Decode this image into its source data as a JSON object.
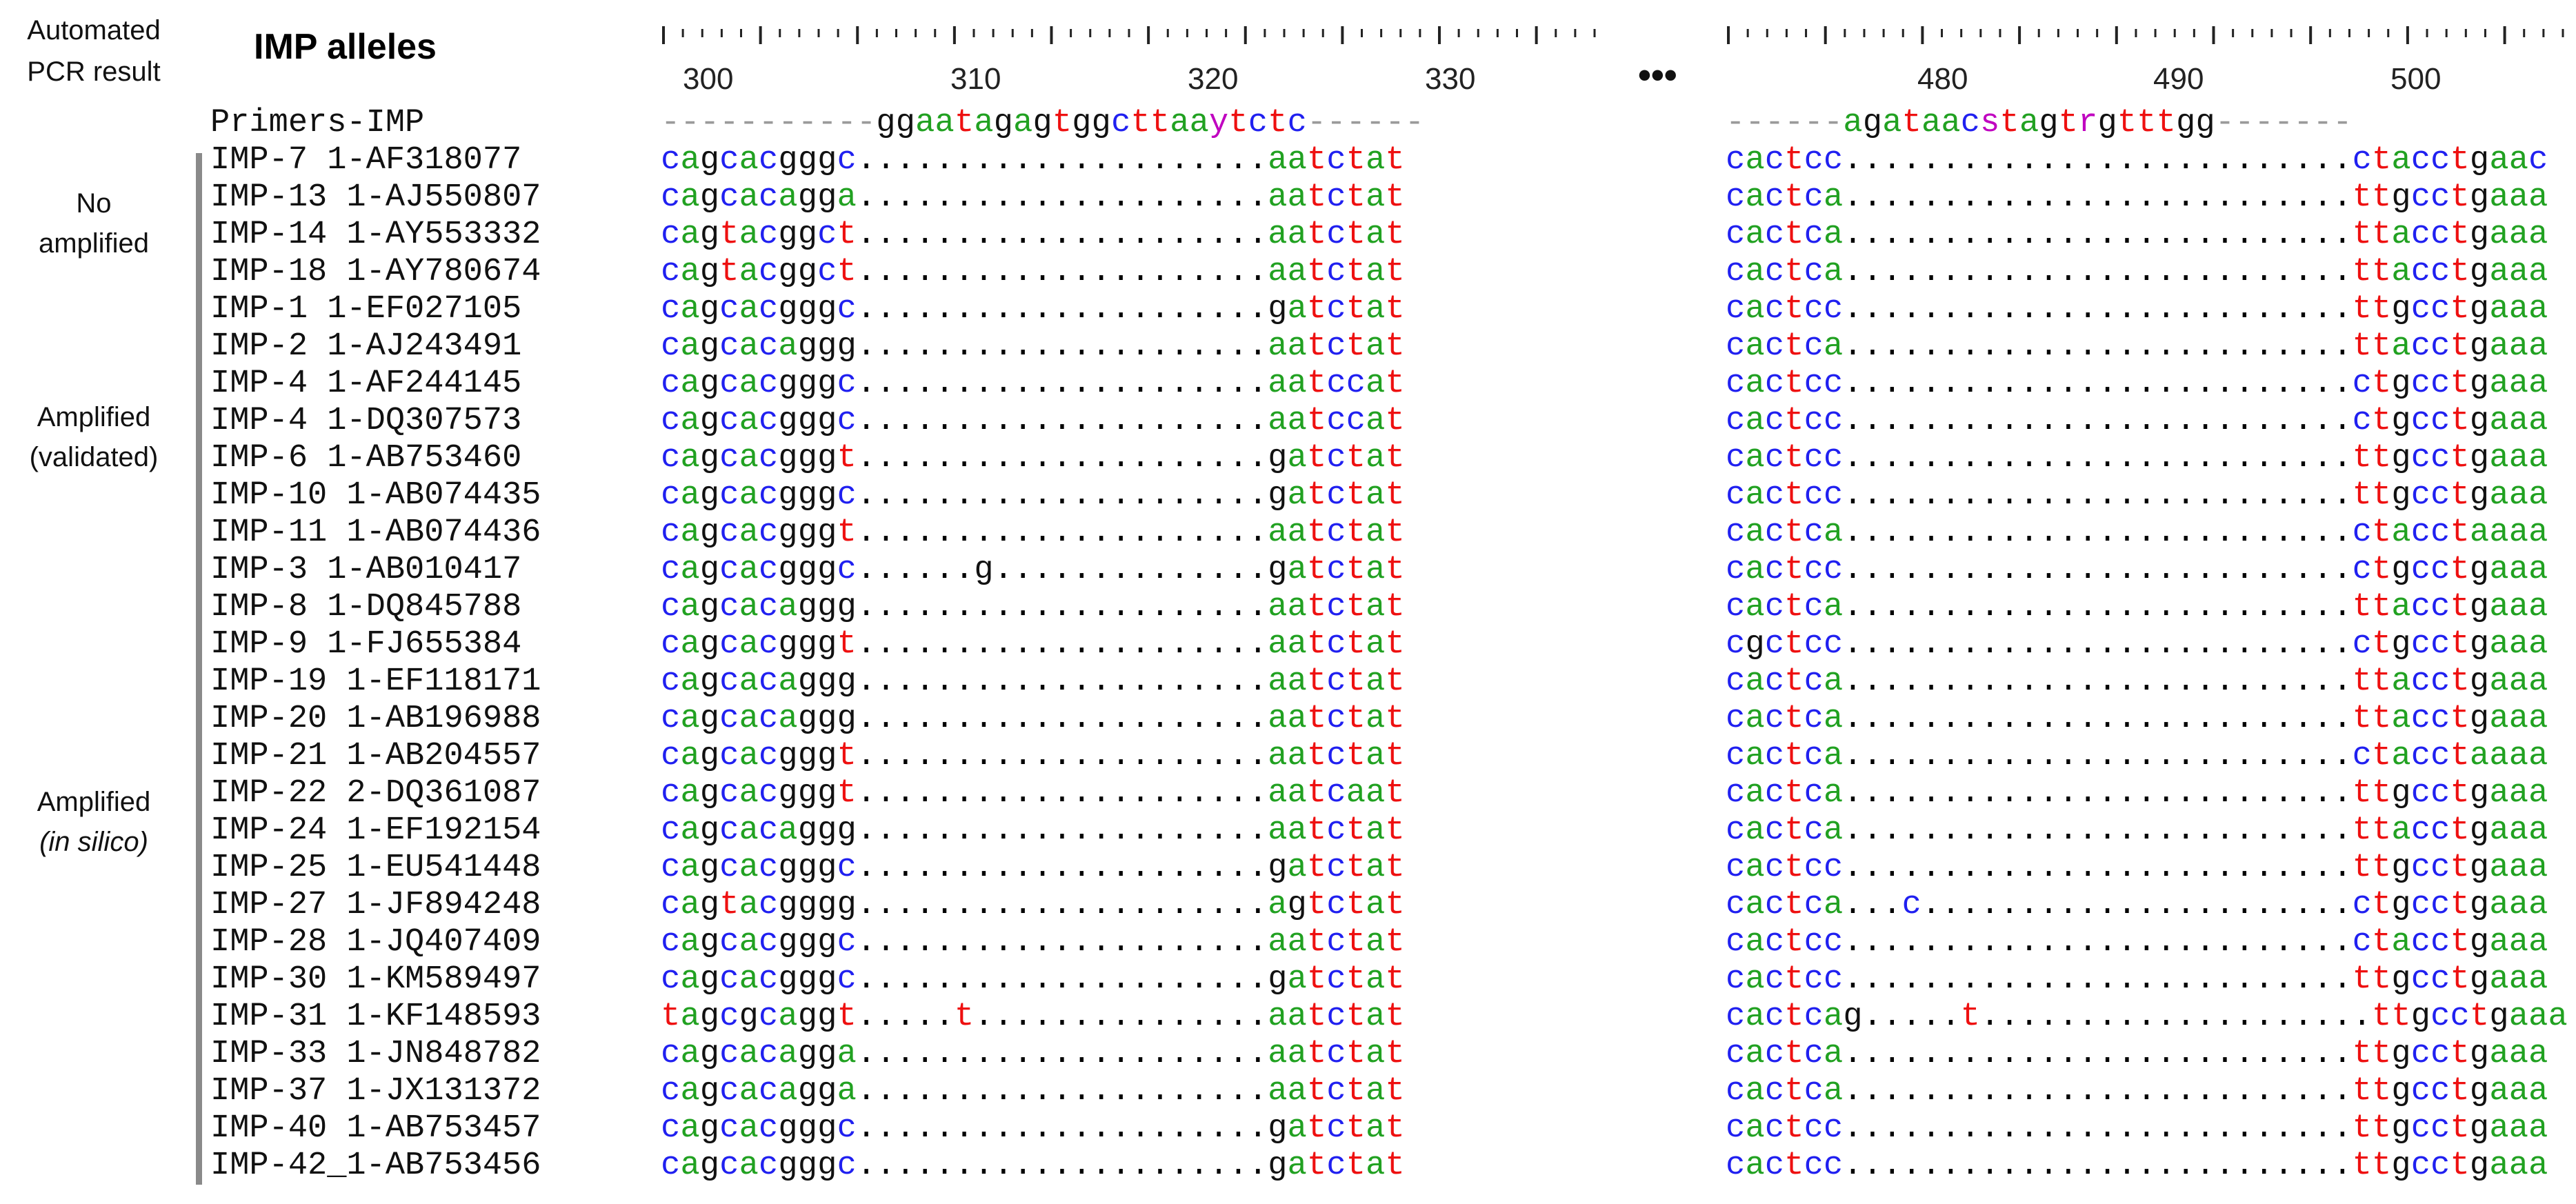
{
  "header": {
    "result_line1": "Automated",
    "result_line2": "PCR result",
    "alleles_title": "IMP alleles"
  },
  "ruler_left": {
    "ticks": [
      "300",
      "310",
      "320",
      "330"
    ]
  },
  "ruler_right": {
    "ticks": [
      "480",
      "490",
      "500"
    ]
  },
  "ellipsis": "•••",
  "groups": [
    {
      "line1": "No",
      "line2": "amplified",
      "italic": false
    },
    {
      "line1": "Amplified",
      "line2": "(validated)",
      "italic": false
    },
    {
      "line1": "Amplified",
      "line2": "(in silico)",
      "italic": true
    }
  ],
  "primer": {
    "name": "Primers-IMP",
    "left": "-----------ggaatagagtggcttaaytctc------",
    "right": "------agataacstagtrgtttgg-------"
  },
  "rows": [
    {
      "name": "IMP-7 1-AF318077",
      "left": "cagcacgggc.....................aatctat",
      "right": "cactcc..........................ctacctgaac"
    },
    {
      "name": "IMP-13 1-AJ550807",
      "left": "cagcacagga.....................aatctat",
      "right": "cactca..........................ttgcctgaaa"
    },
    {
      "name": "IMP-14 1-AY553332",
      "left": "cagtacggct.....................aatctat",
      "right": "cactca..........................ttacctgaaa"
    },
    {
      "name": "IMP-18 1-AY780674",
      "left": "cagtacggct.....................aatctat",
      "right": "cactca..........................ttacctgaaa"
    },
    {
      "name": "IMP-1 1-EF027105",
      "left": "cagcacgggc.....................gatctat",
      "right": "cactcc..........................ttgcctgaaa"
    },
    {
      "name": "IMP-2 1-AJ243491",
      "left": "cagcacaggg.....................aatctat",
      "right": "cactca..........................ttacctgaaa"
    },
    {
      "name": "IMP-4 1-AF244145",
      "left": "cagcacgggc.....................aatccat",
      "right": "cactcc..........................ctgcctgaaa"
    },
    {
      "name": "IMP-4 1-DQ307573",
      "left": "cagcacgggc.....................aatccat",
      "right": "cactcc..........................ctgcctgaaa"
    },
    {
      "name": "IMP-6 1-AB753460",
      "left": "cagcacgggt.....................gatctat",
      "right": "cactcc..........................ttgcctgaaa"
    },
    {
      "name": "IMP-10 1-AB074435",
      "left": "cagcacgggc.....................gatctat",
      "right": "cactcc..........................ttgcctgaaa"
    },
    {
      "name": "IMP-11 1-AB074436",
      "left": "cagcacgggt.....................aatctat",
      "right": "cactca..........................ctacctaaaa"
    },
    {
      "name": "IMP-3 1-AB010417",
      "left": "cagcacgggc......g..............gatctat",
      "right": "cactcc..........................ctgcctgaaa"
    },
    {
      "name": "IMP-8 1-DQ845788",
      "left": "cagcacaggg.....................aatctat",
      "right": "cactca..........................ttacctgaaa"
    },
    {
      "name": "IMP-9 1-FJ655384",
      "left": "cagcacgggt.....................aatctat",
      "right": "cgctcc..........................ctgcctgaaa"
    },
    {
      "name": "IMP-19 1-EF118171",
      "left": "cagcacaggg.....................aatctat",
      "right": "cactca..........................ttacctgaaa"
    },
    {
      "name": "IMP-20 1-AB196988",
      "left": "cagcacaggg.....................aatctat",
      "right": "cactca..........................ttacctgaaa"
    },
    {
      "name": "IMP-21 1-AB204557",
      "left": "cagcacgggt.....................aatctat",
      "right": "cactca..........................ctacctaaaa"
    },
    {
      "name": "IMP-22 2-DQ361087",
      "left": "cagcacgggt.....................aatcaat",
      "right": "cactca..........................ttgcctgaaa"
    },
    {
      "name": "IMP-24 1-EF192154",
      "left": "cagcacaggg.....................aatctat",
      "right": "cactca..........................ttacctgaaa"
    },
    {
      "name": "IMP-25 1-EU541448",
      "left": "cagcacgggc.....................gatctat",
      "right": "cactcc..........................ttgcctgaaa"
    },
    {
      "name": "IMP-27 1-JF894248",
      "left": "cagtacgggg.....................agtctat",
      "right": "cactca...c......................ctgcctgaaa"
    },
    {
      "name": "IMP-28 1-JQ407409",
      "left": "cagcacgggc.....................aatctat",
      "right": "cactcc..........................ctacctgaaa"
    },
    {
      "name": "IMP-30 1-KM589497",
      "left": "cagcacgggc.....................gatctat",
      "right": "cactcc..........................ttgcctgaaa"
    },
    {
      "name": "IMP-31 1-KF148593",
      "left": "tagcgcaggt.....t...............aatctat",
      "right": "cactcag.....t....................ttgcctgaaa"
    },
    {
      "name": "IMP-33 1-JN848782",
      "left": "cagcacagga.....................aatctat",
      "right": "cactca..........................ttgcctgaaa"
    },
    {
      "name": "IMP-37 1-JX131372",
      "left": "cagcacagga.....................aatctat",
      "right": "cactca..........................ttgcctgaaa"
    },
    {
      "name": "IMP-40 1-AB753457",
      "left": "cagcacgggc.....................gatctat",
      "right": "cactcc..........................ttgcctgaaa"
    },
    {
      "name": "IMP-42_1-AB753456",
      "left": "cagcacgggc.....................gatctat",
      "right": "cactcc..........................ttgcctgaaa"
    }
  ],
  "colors": {
    "a": "#21a121",
    "c": "#2020f0",
    "g": "#111111",
    "t": "#ee1010",
    "ambiguous": "#c000c0",
    "bar": "#8a8a8a"
  }
}
